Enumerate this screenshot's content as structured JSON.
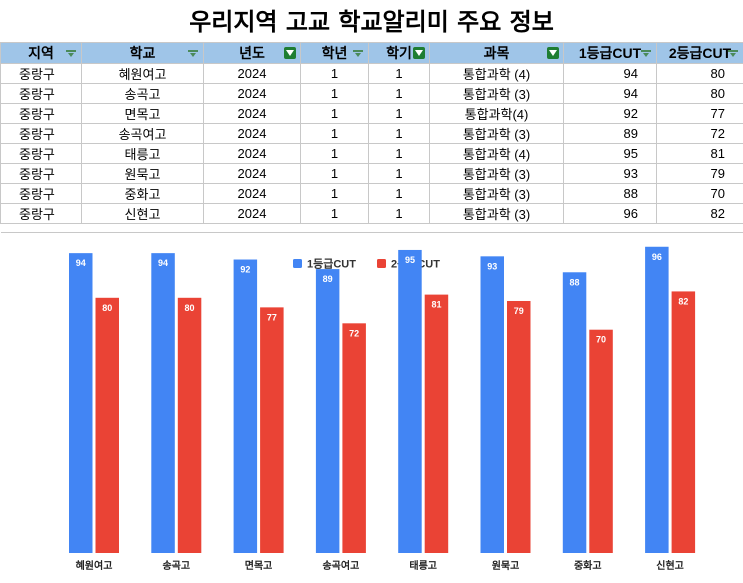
{
  "page": {
    "title": "우리지역 고교 학교알리미 주요 정보"
  },
  "table": {
    "columns": [
      {
        "label": "지역",
        "filter": "plain"
      },
      {
        "label": "학교",
        "filter": "plain"
      },
      {
        "label": "년도",
        "filter": "active"
      },
      {
        "label": "학년",
        "filter": "plain"
      },
      {
        "label": "학기",
        "filter": "active"
      },
      {
        "label": "과목",
        "filter": "active"
      },
      {
        "label": "1등급CUT",
        "filter": "plain"
      },
      {
        "label": "2등급CUT",
        "filter": "plain"
      }
    ],
    "rows": [
      [
        "중랑구",
        "혜원여고",
        "2024",
        "1",
        "1",
        "통합과학 (4)",
        "94",
        "80"
      ],
      [
        "중랑구",
        "송곡고",
        "2024",
        "1",
        "1",
        "통합과학 (3)",
        "94",
        "80"
      ],
      [
        "중랑구",
        "면목고",
        "2024",
        "1",
        "1",
        "통합과학(4)",
        "92",
        "77"
      ],
      [
        "중랑구",
        "송곡여고",
        "2024",
        "1",
        "1",
        "통합과학 (3)",
        "89",
        "72"
      ],
      [
        "중랑구",
        "태릉고",
        "2024",
        "1",
        "1",
        "통합과학 (4)",
        "95",
        "81"
      ],
      [
        "중랑구",
        "원묵고",
        "2024",
        "1",
        "1",
        "통합과학 (3)",
        "93",
        "79"
      ],
      [
        "중랑구",
        "중화고",
        "2024",
        "1",
        "1",
        "통합과학 (3)",
        "88",
        "70"
      ],
      [
        "중랑구",
        "신현고",
        "2024",
        "1",
        "1",
        "통합과학 (3)",
        "96",
        "82"
      ]
    ]
  },
  "chart_data": {
    "type": "bar",
    "categories": [
      "혜원여고",
      "송곡고",
      "면목고",
      "송곡여고",
      "태릉고",
      "원묵고",
      "중화고",
      "신현고"
    ],
    "series": [
      {
        "name": "1등급CUT",
        "color": "#4285f4",
        "values": [
          94,
          94,
          92,
          89,
          95,
          93,
          88,
          96
        ]
      },
      {
        "name": "2등급CUT",
        "color": "#ea4335",
        "values": [
          80,
          80,
          77,
          72,
          81,
          79,
          70,
          82
        ]
      }
    ],
    "ylim": [
      0,
      100
    ],
    "legend": "top",
    "grid": false,
    "data_labels": true
  }
}
